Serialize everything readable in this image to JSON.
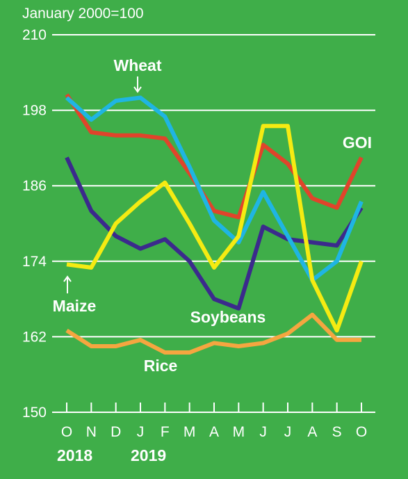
{
  "chart_data": {
    "type": "line",
    "unit_label": "January 2000=100",
    "x": [
      "O",
      "N",
      "D",
      "J",
      "F",
      "M",
      "A",
      "M",
      "J",
      "J",
      "A",
      "S",
      "O"
    ],
    "years": [
      {
        "label": "2018",
        "at_index": 0
      },
      {
        "label": "2019",
        "at_index": 3
      }
    ],
    "ylim": [
      150,
      210
    ],
    "yticks": [
      150,
      162,
      174,
      186,
      198,
      210
    ],
    "grid": true,
    "series": [
      {
        "name": "Wheat",
        "color": "#1fb5e3",
        "values": [
          200.0,
          196.5,
          199.5,
          200.0,
          197.0,
          189.0,
          180.5,
          177.0,
          185.0,
          178.0,
          171.0,
          174.0,
          183.5
        ]
      },
      {
        "name": "GOI",
        "color": "#e0442b",
        "values": [
          200.5,
          194.5,
          194.0,
          194.0,
          193.5,
          188.0,
          182.0,
          181.0,
          192.5,
          189.5,
          184.0,
          182.5,
          190.5
        ]
      },
      {
        "name": "Soybeans",
        "color": "#3b2a8c",
        "values": [
          190.5,
          182.0,
          178.0,
          176.0,
          177.5,
          174.0,
          168.0,
          166.5,
          179.5,
          177.5,
          177.0,
          176.5,
          182.5
        ]
      },
      {
        "name": "Maize",
        "color": "#f5eb12",
        "values": [
          173.5,
          173.0,
          180.0,
          183.5,
          186.5,
          180.0,
          173.0,
          178.0,
          195.5,
          195.5,
          171.0,
          163.0,
          174.0
        ]
      },
      {
        "name": "Rice",
        "color": "#f5a640",
        "values": [
          163.0,
          160.5,
          160.5,
          161.5,
          159.5,
          159.5,
          161.0,
          160.5,
          161.0,
          162.5,
          165.5,
          161.5,
          161.5
        ]
      }
    ]
  }
}
